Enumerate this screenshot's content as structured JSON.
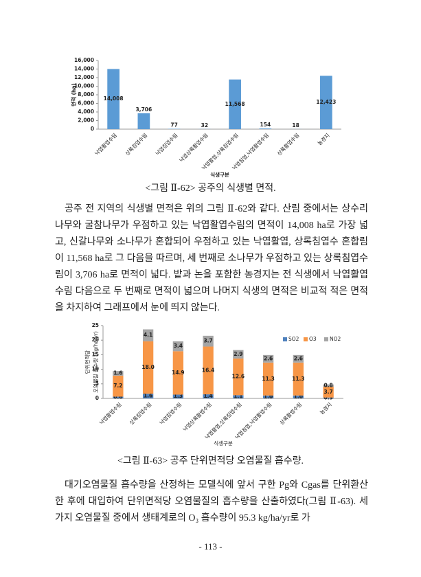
{
  "chart_data": [
    {
      "type": "bar",
      "y_label": "면적 (ha)",
      "x_label": "식생구분",
      "color": "#5b9bd5",
      "grid": false,
      "categories": [
        "낙엽활엽수림",
        "상록침엽수림",
        "낙엽침엽수림",
        "낙엽상록활엽수림",
        "낙엽활엽,상록침엽수림",
        "낙엽침엽,낙엽활엽수림",
        "상록활엽수림",
        "농경지"
      ],
      "values": [
        14008,
        3706,
        77,
        32,
        11568,
        154,
        18,
        12423
      ],
      "value_labels": [
        "14,008",
        "3,706",
        "77",
        "32",
        "11,568",
        "154",
        "18",
        "12,423"
      ],
      "ylim": [
        0,
        16000
      ],
      "yticks": [
        0,
        {
          "value": 2000,
          "label": "2,000"
        },
        {
          "value": 4000,
          "label": "4,000"
        },
        {
          "value": 6000,
          "label": "6,000"
        },
        {
          "value": 8000,
          "label": "8,000"
        },
        {
          "value": 10000,
          "label": "10,000"
        },
        {
          "value": 12000,
          "label": "12,000"
        },
        {
          "value": 14000,
          "label": "14,000"
        },
        {
          "value": 16000,
          "label": "16,000"
        }
      ]
    },
    {
      "type": "stacked-bar",
      "y_label": [
        "단위면적당",
        "오염물질 흡수량 (kg/ha/yr)"
      ],
      "x_label": "식생구분",
      "grid": false,
      "legend": "top-right",
      "categories": [
        "낙엽활엽수림",
        "상록침엽수림",
        "낙엽침엽수림",
        "낙엽상록활엽수림",
        "낙엽활엽,상록침엽수림",
        "낙엽침엽,낙엽활엽수림",
        "상록활엽수림",
        "농경지"
      ],
      "series": [
        {
          "name": "SO2",
          "color": "#4f81bd",
          "values": [
            0.6,
            1.6,
            1.3,
            1.4,
            1.1,
            1.0,
            1.0,
            0.3
          ],
          "value_labels": [
            "0.6",
            "1.6",
            "1.3",
            "1.4",
            "1.1",
            "1.0",
            "1.0",
            "0.3"
          ]
        },
        {
          "name": "O3",
          "color": "#f79646",
          "values": [
            7.2,
            18.0,
            14.9,
            16.4,
            12.6,
            11.3,
            11.3,
            3.7
          ],
          "value_labels": [
            "7.2",
            "18.0",
            "14.9",
            "16.4",
            "12.6",
            "11.3",
            "11.3",
            "3.7"
          ]
        },
        {
          "name": "NO2",
          "color": "#a5a5a5",
          "values": [
            1.6,
            4.1,
            3.4,
            3.7,
            2.9,
            2.6,
            2.6,
            0.8
          ],
          "value_labels": [
            "1.6",
            "4.1",
            "3.4",
            "3.7",
            "2.9",
            "2.6",
            "2.6",
            "0.8"
          ]
        }
      ],
      "ylim": [
        0,
        25
      ],
      "yticks": [
        0,
        5,
        10,
        15,
        20,
        25
      ]
    }
  ],
  "document": {
    "caption_1": "<그림 Ⅱ-62> 공주의 식생별 면적.",
    "paragraph_1": "공주 전 지역의 식생별 면적은 위의 그림 Ⅱ-62와 같다. 산림 중에서는 상수리나무와 굴참나무가 우점하고 있는 낙엽활엽수림의 면적이 14,008 ha로 가장 넓고, 신갈나무와 소나무가 혼합되어 우점하고 있는 낙엽활엽, 상록침엽수 혼합림이 11,568 ha로 그 다음을 따르며, 세 번째로 소나무가 우점하고 있는 상록침엽수림이 3,706 ha로 면적이 넓다. 밭과 논을 포함한 농경지는 전 식생에서 낙엽활엽수림 다음으로 두 번째로 면적이 넓으며 나머지 식생의 면적은 비교적 적은 면적을 차지하여 그래프에서 눈에 띄지 않는다.",
    "caption_2": "<그림 Ⅱ-63> 공주 단위면적당 오염물질 흡수량.",
    "paragraph_2": "대기오염물질 흡수량을 산정하는 모델식에 앞서 구한 Pg와 Cgas를 단위환산한 후에 대입하여 단위면적당 오염물질의 흡수량을 산출하였다(그림 Ⅱ-63). 세 가지 오염물질 중에서 생태계로의 O₃ 흡수량이 95.3 kg/ha/yr로 가",
    "page_number": "- 113 -"
  }
}
